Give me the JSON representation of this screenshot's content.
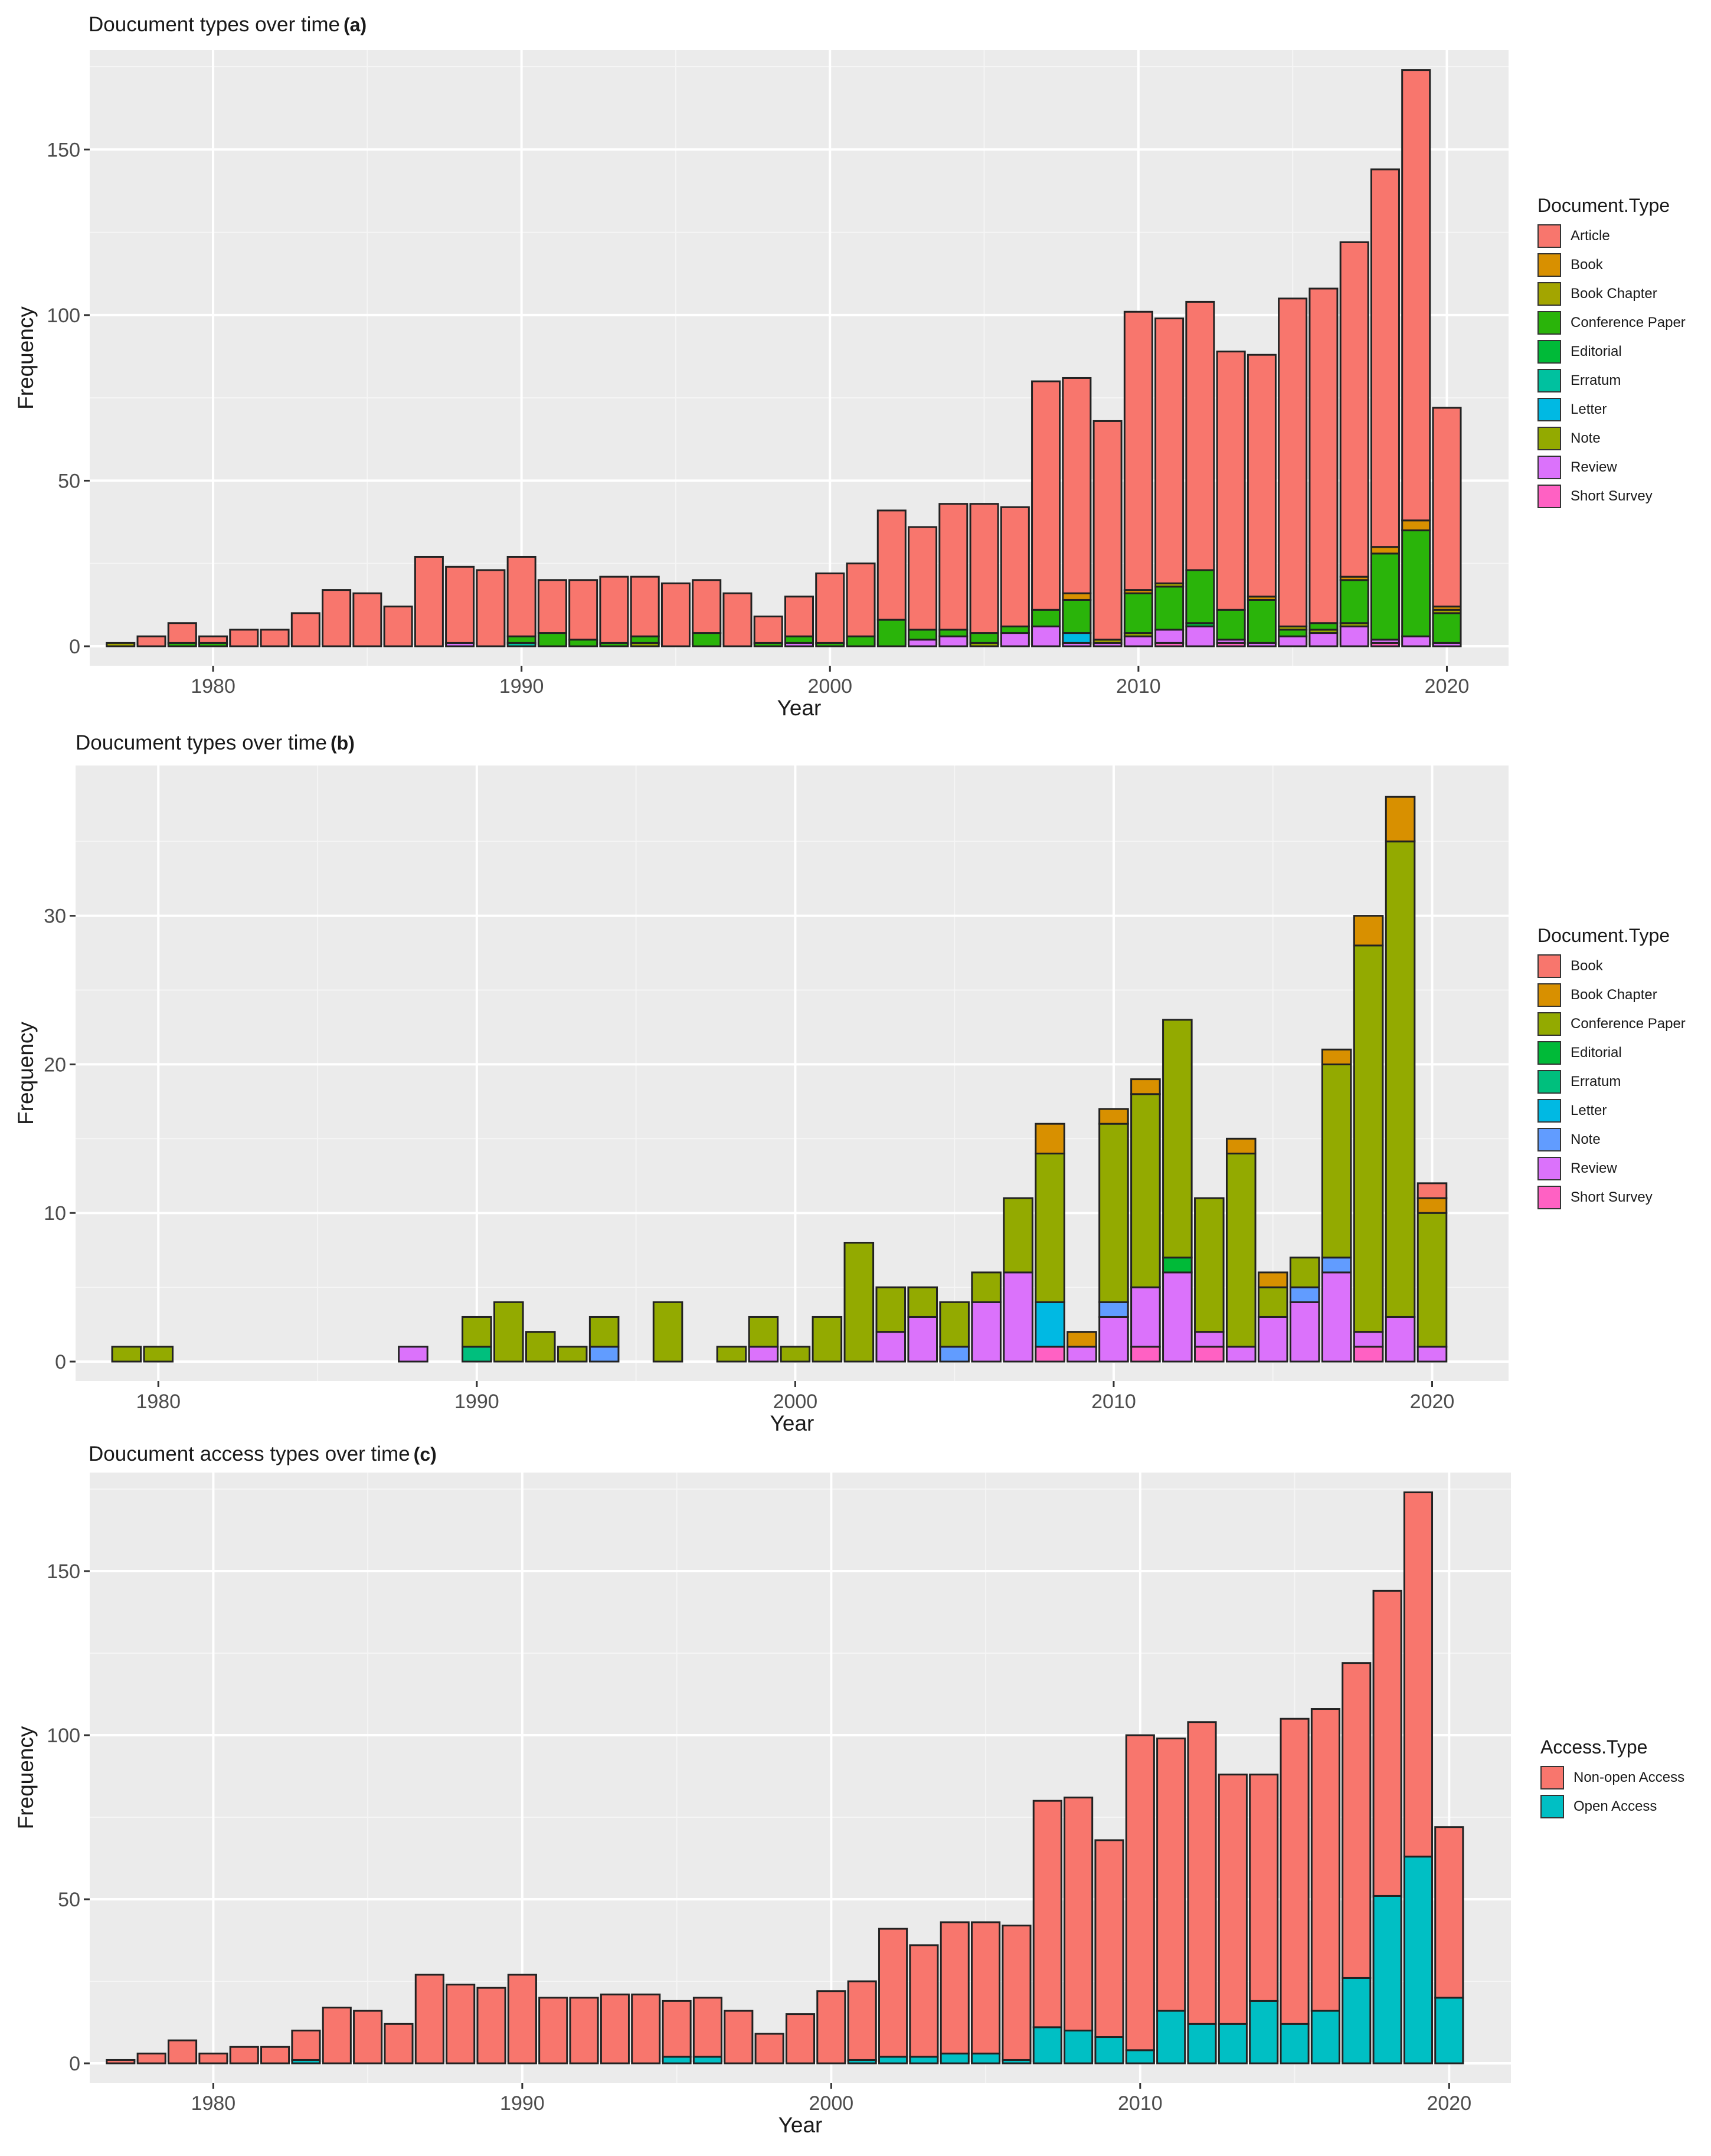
{
  "chart_data": [
    {
      "id": "a",
      "type": "bar",
      "stacked": true,
      "title": "Doucument types over time",
      "panel_tag": "(a)",
      "xlabel": "Year",
      "ylabel": "Frequency",
      "xlim": [
        1976,
        2022
      ],
      "ylim": [
        0,
        175
      ],
      "xticks": [
        1980,
        1990,
        2000,
        2010,
        2020
      ],
      "yticks": [
        0,
        50,
        100,
        150
      ],
      "grid": true,
      "legend_position": "right",
      "legend_title": "Document.Type",
      "x": [
        1977,
        1978,
        1979,
        1980,
        1981,
        1982,
        1983,
        1984,
        1985,
        1986,
        1987,
        1988,
        1989,
        1990,
        1991,
        1992,
        1993,
        1994,
        1995,
        1996,
        1997,
        1998,
        1999,
        2000,
        2001,
        2002,
        2003,
        2004,
        2005,
        2006,
        2007,
        2008,
        2009,
        2010,
        2011,
        2012,
        2013,
        2014,
        2015,
        2016,
        2017,
        2018,
        2019,
        2020
      ],
      "series": [
        {
          "name": "Short Survey",
          "color": "#FF61C3",
          "values": [
            0,
            0,
            0,
            0,
            0,
            0,
            0,
            0,
            0,
            0,
            0,
            0,
            0,
            0,
            0,
            0,
            0,
            0,
            0,
            0,
            0,
            0,
            0,
            0,
            0,
            0,
            0,
            0,
            0,
            0,
            0,
            0,
            0,
            0,
            1,
            0,
            1,
            0,
            0,
            0,
            0,
            1,
            0,
            0
          ]
        },
        {
          "name": "Review",
          "color": "#DB72FB",
          "values": [
            0,
            0,
            0,
            0,
            0,
            0,
            0,
            0,
            0,
            0,
            0,
            1,
            0,
            0,
            0,
            0,
            0,
            0,
            0,
            0,
            0,
            0,
            1,
            0,
            0,
            0,
            2,
            3,
            0,
            4,
            6,
            1,
            1,
            3,
            4,
            6,
            1,
            1,
            3,
            4,
            6,
            1,
            3,
            1
          ]
        },
        {
          "name": "Note",
          "color": "#93AA00",
          "values": [
            0,
            0,
            0,
            0,
            0,
            0,
            0,
            0,
            0,
            0,
            0,
            0,
            0,
            0,
            0,
            0,
            0,
            1,
            0,
            0,
            0,
            0,
            0,
            0,
            0,
            0,
            0,
            0,
            1,
            0,
            0,
            0,
            0,
            1,
            0,
            0,
            0,
            0,
            0,
            1,
            1,
            0,
            0,
            0
          ]
        },
        {
          "name": "Letter",
          "color": "#00B9E3",
          "values": [
            0,
            0,
            0,
            0,
            0,
            0,
            0,
            0,
            0,
            0,
            0,
            0,
            0,
            0,
            0,
            0,
            0,
            0,
            0,
            0,
            0,
            0,
            0,
            0,
            0,
            0,
            0,
            0,
            0,
            0,
            0,
            3,
            0,
            0,
            0,
            0,
            0,
            0,
            0,
            0,
            0,
            0,
            0,
            0
          ]
        },
        {
          "name": "Erratum",
          "color": "#00C19F",
          "values": [
            0,
            0,
            0,
            0,
            0,
            0,
            0,
            0,
            0,
            0,
            0,
            0,
            0,
            1,
            0,
            0,
            0,
            0,
            0,
            0,
            0,
            0,
            0,
            0,
            0,
            0,
            0,
            0,
            0,
            0,
            0,
            0,
            0,
            0,
            0,
            0,
            0,
            0,
            0,
            0,
            0,
            0,
            0,
            0
          ]
        },
        {
          "name": "Editorial",
          "color": "#00BA38",
          "values": [
            0,
            0,
            0,
            0,
            0,
            0,
            0,
            0,
            0,
            0,
            0,
            0,
            0,
            0,
            0,
            0,
            0,
            0,
            0,
            0,
            0,
            0,
            0,
            0,
            0,
            0,
            0,
            0,
            0,
            0,
            0,
            0,
            0,
            0,
            0,
            1,
            0,
            0,
            0,
            0,
            0,
            0,
            0,
            0
          ]
        },
        {
          "name": "Conference Paper",
          "color": "#2AB40A",
          "values": [
            0,
            0,
            1,
            1,
            0,
            0,
            0,
            0,
            0,
            0,
            0,
            0,
            0,
            2,
            4,
            2,
            1,
            2,
            0,
            4,
            0,
            1,
            2,
            1,
            3,
            8,
            3,
            2,
            3,
            2,
            5,
            10,
            0,
            12,
            13,
            16,
            9,
            13,
            2,
            2,
            13,
            26,
            32,
            9
          ]
        },
        {
          "name": "Book Chapter",
          "color": "#A3A500",
          "values": [
            1,
            0,
            0,
            0,
            0,
            0,
            0,
            0,
            0,
            0,
            0,
            0,
            0,
            0,
            0,
            0,
            0,
            0,
            0,
            0,
            0,
            0,
            0,
            0,
            0,
            0,
            0,
            0,
            0,
            0,
            0,
            0,
            1,
            0,
            1,
            0,
            0,
            0,
            1,
            0,
            0,
            0,
            0,
            1
          ]
        },
        {
          "name": "Book",
          "color": "#D89000",
          "values": [
            0,
            0,
            0,
            0,
            0,
            0,
            0,
            0,
            0,
            0,
            0,
            0,
            0,
            0,
            0,
            0,
            0,
            0,
            0,
            0,
            0,
            0,
            0,
            0,
            0,
            0,
            0,
            0,
            0,
            0,
            0,
            2,
            0,
            1,
            0,
            0,
            0,
            1,
            0,
            0,
            1,
            2,
            3,
            1
          ]
        },
        {
          "name": "Article",
          "color": "#F8766D",
          "values": [
            0,
            3,
            6,
            2,
            5,
            5,
            10,
            17,
            16,
            12,
            27,
            23,
            23,
            24,
            16,
            18,
            20,
            18,
            19,
            16,
            16,
            8,
            12,
            21,
            22,
            33,
            31,
            38,
            39,
            36,
            69,
            65,
            66,
            84,
            80,
            81,
            78,
            73,
            99,
            101,
            101,
            114,
            136,
            60
          ]
        }
      ]
    },
    {
      "id": "b",
      "type": "bar",
      "stacked": true,
      "title": "Doucument types over time",
      "panel_tag": "(b)",
      "xlabel": "Year",
      "ylabel": "Frequency",
      "xlim": [
        1977.4,
        2022.4
      ],
      "ylim": [
        0,
        38
      ],
      "xticks": [
        1980,
        1990,
        2000,
        2010,
        2020
      ],
      "yticks": [
        0,
        10,
        20,
        30
      ],
      "grid": true,
      "legend_position": "right",
      "legend_title": "Document.Type",
      "x": [
        1979,
        1980,
        1988,
        1990,
        1991,
        1992,
        1993,
        1994,
        1996,
        1998,
        1999,
        2000,
        2001,
        2002,
        2003,
        2004,
        2005,
        2006,
        2007,
        2008,
        2009,
        2010,
        2011,
        2012,
        2013,
        2014,
        2015,
        2016,
        2017,
        2018,
        2019,
        2020
      ],
      "series": [
        {
          "name": "Short Survey",
          "color": "#FF61C3",
          "values": [
            0,
            0,
            0,
            0,
            0,
            0,
            0,
            0,
            0,
            0,
            0,
            0,
            0,
            0,
            0,
            0,
            0,
            0,
            0,
            1,
            0,
            0,
            1,
            0,
            1,
            0,
            0,
            0,
            0,
            1,
            0,
            0
          ]
        },
        {
          "name": "Review",
          "color": "#DB72FB",
          "values": [
            0,
            0,
            1,
            0,
            0,
            0,
            0,
            0,
            0,
            0,
            1,
            0,
            0,
            0,
            2,
            3,
            0,
            4,
            6,
            0,
            1,
            3,
            4,
            6,
            1,
            1,
            3,
            4,
            6,
            1,
            3,
            1
          ]
        },
        {
          "name": "Note",
          "color": "#619CFF",
          "values": [
            0,
            0,
            0,
            0,
            0,
            0,
            0,
            1,
            0,
            0,
            0,
            0,
            0,
            0,
            0,
            0,
            1,
            0,
            0,
            0,
            0,
            1,
            0,
            0,
            0,
            0,
            0,
            1,
            1,
            0,
            0,
            0
          ]
        },
        {
          "name": "Letter",
          "color": "#00B9E3",
          "values": [
            0,
            0,
            0,
            0,
            0,
            0,
            0,
            0,
            0,
            0,
            0,
            0,
            0,
            0,
            0,
            0,
            0,
            0,
            0,
            3,
            0,
            0,
            0,
            0,
            0,
            0,
            0,
            0,
            0,
            0,
            0,
            0
          ]
        },
        {
          "name": "Erratum",
          "color": "#00BF7D",
          "values": [
            0,
            0,
            0,
            1,
            0,
            0,
            0,
            0,
            0,
            0,
            0,
            0,
            0,
            0,
            0,
            0,
            0,
            0,
            0,
            0,
            0,
            0,
            0,
            0,
            0,
            0,
            0,
            0,
            0,
            0,
            0,
            0
          ]
        },
        {
          "name": "Editorial",
          "color": "#00BA38",
          "values": [
            0,
            0,
            0,
            0,
            0,
            0,
            0,
            0,
            0,
            0,
            0,
            0,
            0,
            0,
            0,
            0,
            0,
            0,
            0,
            0,
            0,
            0,
            0,
            1,
            0,
            0,
            0,
            0,
            0,
            0,
            0,
            0
          ]
        },
        {
          "name": "Conference Paper",
          "color": "#93AA00",
          "values": [
            1,
            1,
            0,
            2,
            4,
            2,
            1,
            2,
            4,
            1,
            2,
            1,
            3,
            8,
            3,
            2,
            3,
            2,
            5,
            10,
            0,
            12,
            13,
            16,
            9,
            13,
            2,
            2,
            13,
            26,
            32,
            9
          ]
        },
        {
          "name": "Book Chapter",
          "color": "#D89000",
          "values": [
            0,
            0,
            0,
            0,
            0,
            0,
            0,
            0,
            0,
            0,
            0,
            0,
            0,
            0,
            0,
            0,
            0,
            0,
            0,
            2,
            1,
            1,
            1,
            0,
            0,
            1,
            1,
            0,
            1,
            2,
            3,
            1
          ]
        },
        {
          "name": "Book",
          "color": "#F8766D",
          "values": [
            0,
            0,
            0,
            0,
            0,
            0,
            0,
            0,
            0,
            0,
            0,
            0,
            0,
            0,
            0,
            0,
            0,
            0,
            0,
            0,
            0,
            0,
            0,
            0,
            0,
            0,
            0,
            0,
            0,
            0,
            0,
            1
          ]
        }
      ]
    },
    {
      "id": "c",
      "type": "bar",
      "stacked": true,
      "title": "Doucument access types over time",
      "panel_tag": "(c)",
      "xlabel": "Year",
      "ylabel": "Frequency",
      "xlim": [
        1976,
        2022
      ],
      "ylim": [
        0,
        175
      ],
      "xticks": [
        1980,
        1990,
        2000,
        2010,
        2020
      ],
      "yticks": [
        0,
        50,
        100,
        150
      ],
      "grid": true,
      "legend_position": "right",
      "legend_title": "Access.Type",
      "x": [
        1977,
        1978,
        1979,
        1980,
        1981,
        1982,
        1983,
        1984,
        1985,
        1986,
        1987,
        1988,
        1989,
        1990,
        1991,
        1992,
        1993,
        1994,
        1995,
        1996,
        1997,
        1998,
        1999,
        2000,
        2001,
        2002,
        2003,
        2004,
        2005,
        2006,
        2007,
        2008,
        2009,
        2010,
        2011,
        2012,
        2013,
        2014,
        2015,
        2016,
        2017,
        2018,
        2019,
        2020
      ],
      "series": [
        {
          "name": "Open Access",
          "color": "#00BFC4",
          "values": [
            0,
            0,
            0,
            0,
            0,
            0,
            1,
            0,
            0,
            0,
            0,
            0,
            0,
            0,
            0,
            0,
            0,
            0,
            2,
            2,
            0,
            0,
            0,
            0,
            1,
            2,
            2,
            3,
            3,
            1,
            11,
            10,
            8,
            4,
            16,
            12,
            12,
            19,
            12,
            16,
            26,
            51,
            63,
            20
          ]
        },
        {
          "name": "Non-open Access",
          "color": "#F8766D",
          "values": [
            1,
            3,
            7,
            3,
            5,
            5,
            9,
            17,
            16,
            12,
            27,
            24,
            23,
            27,
            20,
            20,
            21,
            21,
            17,
            18,
            16,
            9,
            15,
            22,
            24,
            39,
            34,
            40,
            40,
            41,
            69,
            71,
            60,
            96,
            83,
            92,
            76,
            69,
            93,
            92,
            96,
            93,
            111,
            52
          ]
        }
      ]
    }
  ]
}
